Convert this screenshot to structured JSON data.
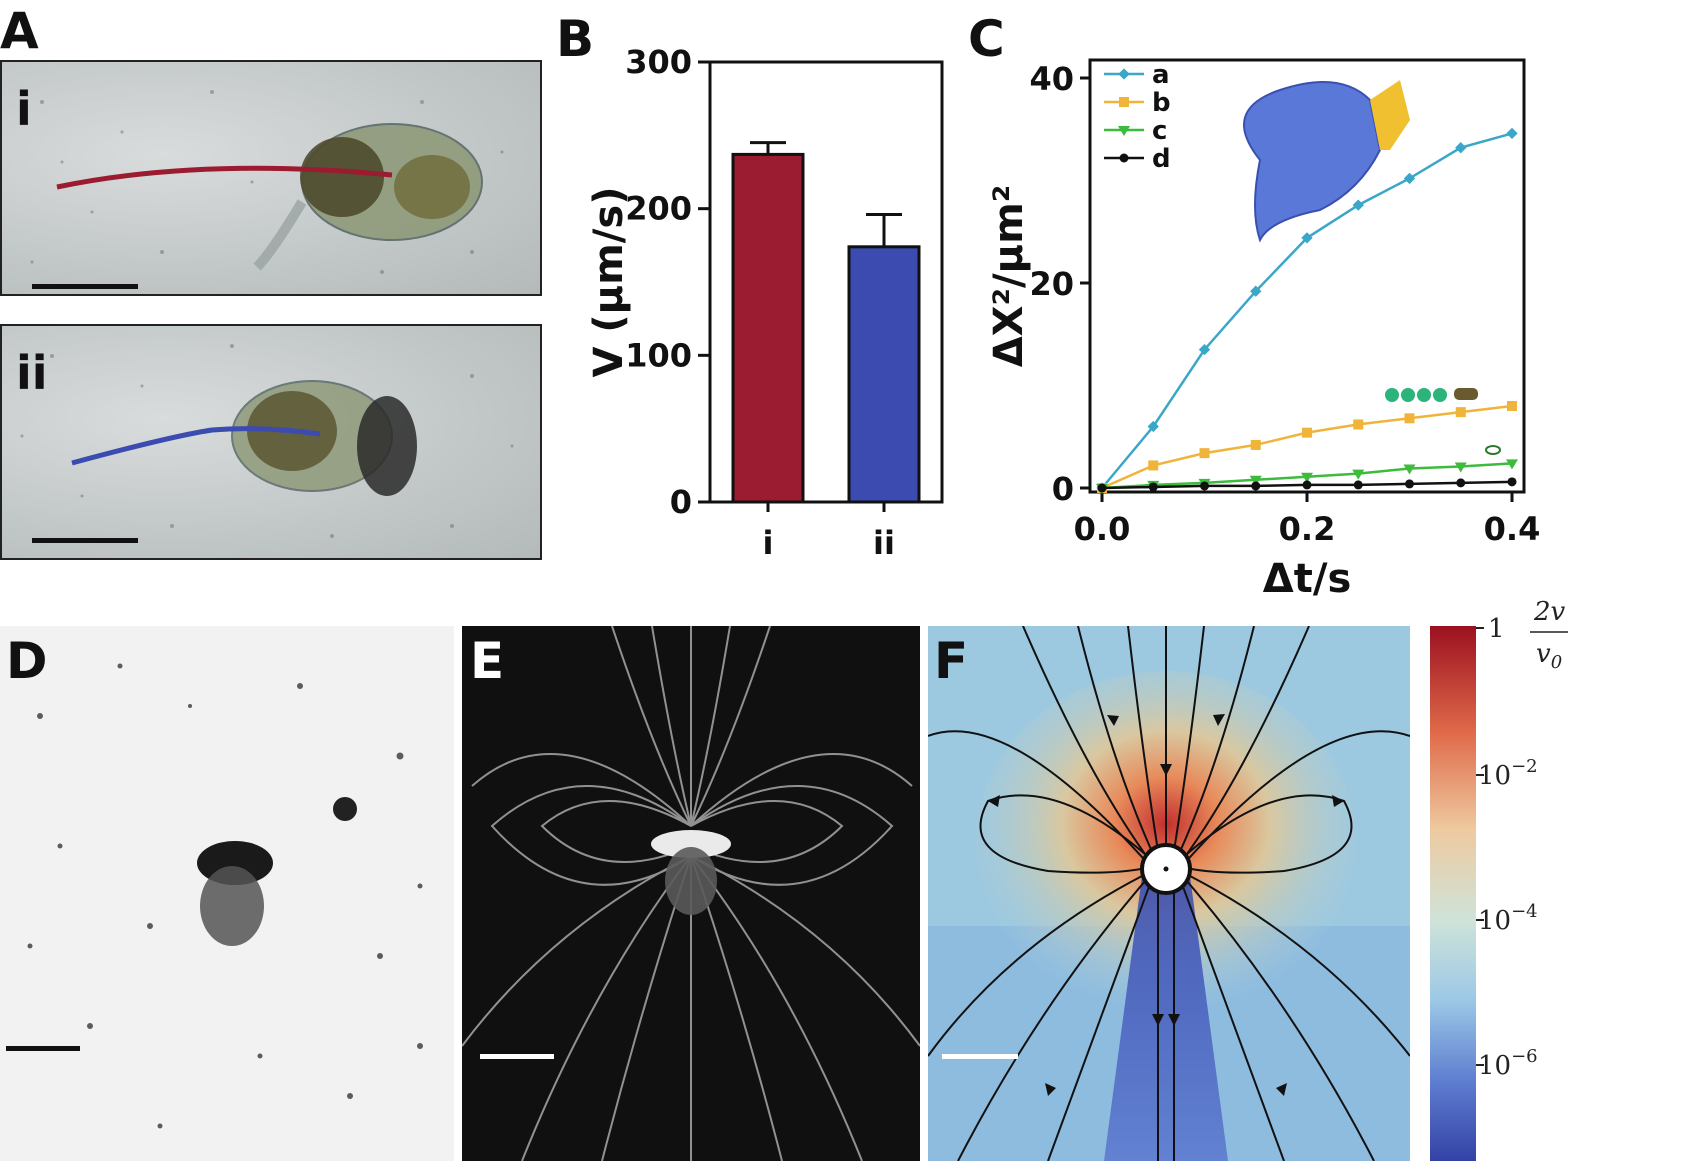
{
  "panels": {
    "A": {
      "label": "A",
      "sub": [
        "i",
        "ii"
      ]
    },
    "B": {
      "label": "B"
    },
    "C": {
      "label": "C"
    },
    "D": {
      "label": "D"
    },
    "E": {
      "label": "E"
    },
    "F": {
      "label": "F"
    }
  },
  "colors": {
    "i": "#9b1b30",
    "ii": "#3b4bb0",
    "a": "#3aa6c8",
    "b": "#f0b43a",
    "c": "#3dbb3d",
    "d": "#111111"
  },
  "chart_data": [
    {
      "type": "bar",
      "panel": "B",
      "categories": [
        "i",
        "ii"
      ],
      "values": [
        237,
        174
      ],
      "errors": [
        8,
        22
      ],
      "ylabel": "V (μm/s)",
      "ylim": [
        0,
        300
      ],
      "yticks": [
        "0",
        "100",
        "200",
        "300"
      ]
    },
    {
      "type": "line",
      "panel": "C",
      "xlabel": "Δt/s",
      "ylabel": "ΔX²/μm²",
      "xlim": [
        0,
        0.4
      ],
      "ylim": [
        0,
        40
      ],
      "xticks": [
        "0.0",
        "0.2",
        "0.4"
      ],
      "yticks": [
        "0",
        "20",
        "40"
      ],
      "legend_position": "top-left",
      "series": [
        {
          "name": "a",
          "x": [
            0,
            0.05,
            0.1,
            0.15,
            0.2,
            0.25,
            0.3,
            0.35,
            0.4
          ],
          "y": [
            0,
            6.0,
            13.5,
            19.2,
            24.4,
            27.6,
            30.2,
            33.2,
            34.6
          ]
        },
        {
          "name": "b",
          "x": [
            0,
            0.05,
            0.1,
            0.15,
            0.2,
            0.25,
            0.3,
            0.35,
            0.4
          ],
          "y": [
            0,
            2.2,
            3.4,
            4.2,
            5.4,
            6.2,
            6.8,
            7.4,
            8.0
          ]
        },
        {
          "name": "c",
          "x": [
            0,
            0.05,
            0.1,
            0.15,
            0.2,
            0.25,
            0.3,
            0.35,
            0.4
          ],
          "y": [
            0,
            0.3,
            0.5,
            0.8,
            1.1,
            1.4,
            1.9,
            2.1,
            2.4
          ]
        },
        {
          "name": "d",
          "x": [
            0,
            0.05,
            0.1,
            0.15,
            0.2,
            0.25,
            0.3,
            0.35,
            0.4
          ],
          "y": [
            0,
            0.1,
            0.2,
            0.2,
            0.3,
            0.3,
            0.4,
            0.5,
            0.6
          ]
        }
      ]
    }
  ],
  "colorbar": {
    "ticks": [
      "1",
      "10",
      "10",
      "10"
    ],
    "exponents": [
      "",
      "−2",
      "−4",
      "−6"
    ],
    "label_num": "2v",
    "label_den": "v",
    "label_den_sub": "0"
  }
}
